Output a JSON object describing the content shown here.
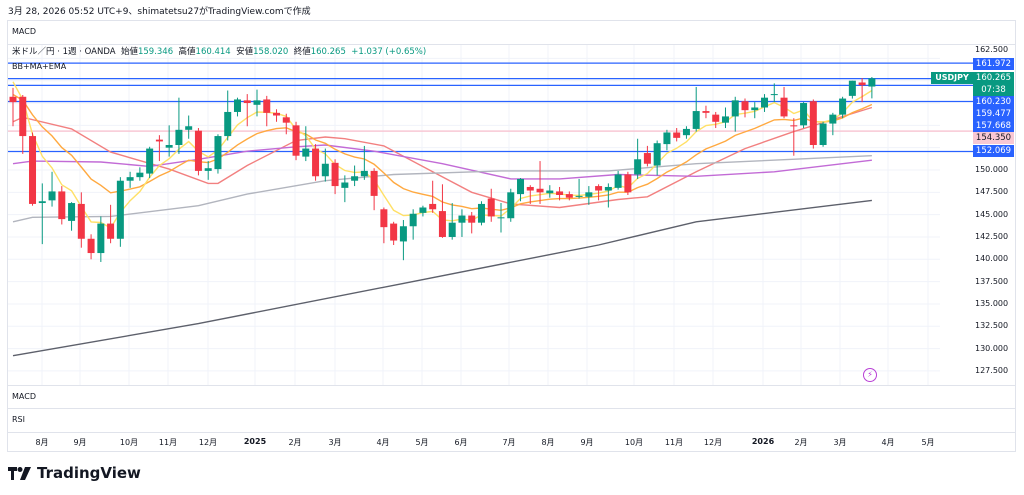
{
  "caption": "3月 28, 2026 05:52 UTC+9、shimatetsu27がTradingView.comで作成",
  "panes": {
    "top": "MACD",
    "macd": "MACD",
    "rsi": "RSI",
    "indicators": "BB+MA+EMA"
  },
  "legend": {
    "symbol": "米ドル／円 · 1週 · OANDA",
    "open_label": "始値",
    "open": "159.346",
    "high_label": "高値",
    "high": "160.414",
    "low_label": "安値",
    "low": "158.020",
    "close_label": "終値",
    "close": "160.265",
    "change": "+1.037 (+0.65%)"
  },
  "symbol_tag": "USDJPY",
  "current_price": {
    "price": "160.265",
    "countdown": "07:38"
  },
  "price_labels": [
    {
      "text": "161.972",
      "value": 161.972,
      "color": "#2962ff"
    },
    {
      "text": "160.230",
      "value": 160.23,
      "color": "#2962ff"
    },
    {
      "text": "159.477",
      "value": 159.477,
      "color": "#2962ff"
    },
    {
      "text": "157.668",
      "value": 157.668,
      "color": "#2962ff"
    },
    {
      "text": "154.350",
      "value": 154.35,
      "color": "#f8c8d4"
    },
    {
      "text": "152.069",
      "value": 152.069,
      "color": "#2962ff"
    }
  ],
  "price_ticks": [
    "162.500",
    "150.000",
    "147.500",
    "145.000",
    "142.500",
    "140.000",
    "137.500",
    "135.000",
    "132.500",
    "130.000",
    "127.500"
  ],
  "time_labels": [
    {
      "text": "8月"
    },
    {
      "text": "9月"
    },
    {
      "text": "10月"
    },
    {
      "text": "11月"
    },
    {
      "text": "12月"
    },
    {
      "text": "2025",
      "bold": true
    },
    {
      "text": "2月"
    },
    {
      "text": "3月"
    },
    {
      "text": "4月"
    },
    {
      "text": "5月"
    },
    {
      "text": "6月"
    },
    {
      "text": "7月"
    },
    {
      "text": "8月"
    },
    {
      "text": "9月"
    },
    {
      "text": "10月"
    },
    {
      "text": "11月"
    },
    {
      "text": "12月"
    },
    {
      "text": "2026",
      "bold": true
    },
    {
      "text": "2月"
    },
    {
      "text": "3月"
    },
    {
      "text": "4月"
    },
    {
      "text": "5月"
    }
  ],
  "brand": "TradingView",
  "colors": {
    "up": "#089981",
    "down": "#f23645",
    "level": "#2962ff",
    "pink_level": "#f8c8d4",
    "tag": "#089981"
  },
  "chart_data": {
    "type": "candlestick",
    "interval": "1W",
    "ylim": [
      126,
      163
    ],
    "ohlc": [
      [
        158.2,
        159.2,
        154.9,
        157.6
      ],
      [
        158.2,
        158.4,
        151.8,
        153.8
      ],
      [
        153.8,
        154.2,
        146.0,
        146.2
      ],
      [
        146.3,
        148.5,
        141.7,
        146.5
      ],
      [
        146.6,
        149.8,
        145.9,
        147.6
      ],
      [
        147.6,
        148.2,
        143.9,
        144.5
      ],
      [
        144.3,
        146.4,
        143.2,
        146.3
      ],
      [
        146.2,
        147.5,
        141.3,
        142.3
      ],
      [
        142.3,
        142.8,
        140.0,
        140.7
      ],
      [
        140.7,
        144.8,
        139.7,
        144.0
      ],
      [
        144.0,
        146.1,
        141.8,
        142.3
      ],
      [
        142.3,
        149.2,
        141.4,
        148.8
      ],
      [
        148.8,
        149.8,
        148.0,
        149.2
      ],
      [
        149.2,
        150.3,
        148.8,
        149.7
      ],
      [
        149.6,
        152.6,
        149.1,
        152.4
      ],
      [
        153.4,
        153.9,
        151.0,
        153.2
      ],
      [
        152.5,
        155.0,
        151.5,
        152.8
      ],
      [
        152.8,
        158.1,
        151.8,
        154.5
      ],
      [
        154.5,
        156.1,
        153.5,
        154.9
      ],
      [
        154.4,
        154.7,
        149.4,
        149.9
      ],
      [
        149.9,
        151.0,
        148.9,
        150.2
      ],
      [
        150.1,
        154.0,
        149.6,
        153.8
      ],
      [
        153.8,
        158.9,
        153.3,
        156.5
      ],
      [
        156.5,
        158.1,
        156.0,
        157.9
      ],
      [
        157.8,
        158.5,
        154.9,
        157.5
      ],
      [
        157.3,
        159.0,
        156.0,
        157.8
      ],
      [
        157.9,
        158.3,
        154.9,
        156.4
      ],
      [
        156.4,
        156.8,
        155.4,
        156.1
      ],
      [
        155.9,
        156.3,
        154.0,
        155.3
      ],
      [
        155.0,
        155.4,
        151.1,
        151.6
      ],
      [
        151.5,
        154.9,
        151.0,
        152.4
      ],
      [
        152.4,
        152.9,
        148.8,
        149.3
      ],
      [
        149.3,
        152.4,
        148.7,
        150.7
      ],
      [
        150.8,
        151.2,
        147.3,
        148.2
      ],
      [
        148.0,
        149.4,
        146.4,
        148.6
      ],
      [
        148.8,
        150.5,
        148.2,
        149.3
      ],
      [
        149.3,
        152.7,
        148.9,
        149.9
      ],
      [
        149.9,
        150.2,
        145.5,
        147.1
      ],
      [
        145.6,
        145.8,
        141.8,
        143.6
      ],
      [
        144.0,
        144.2,
        141.6,
        142.1
      ],
      [
        142.0,
        144.4,
        139.9,
        143.7
      ],
      [
        143.7,
        145.6,
        142.2,
        145.1
      ],
      [
        145.2,
        146.0,
        144.8,
        145.8
      ],
      [
        146.2,
        148.8,
        145.2,
        145.6
      ],
      [
        145.4,
        148.4,
        142.4,
        142.5
      ],
      [
        142.5,
        146.3,
        142.2,
        144.1
      ],
      [
        144.1,
        145.6,
        142.5,
        144.9
      ],
      [
        144.9,
        145.3,
        142.9,
        144.1
      ],
      [
        144.1,
        146.5,
        143.8,
        146.2
      ],
      [
        146.8,
        147.9,
        144.2,
        144.8
      ],
      [
        144.6,
        146.3,
        143.0,
        144.7
      ],
      [
        144.6,
        147.9,
        144.2,
        147.5
      ],
      [
        147.3,
        149.1,
        146.5,
        149.0
      ],
      [
        148.1,
        148.3,
        146.2,
        147.7
      ],
      [
        147.9,
        151.0,
        146.2,
        147.5
      ],
      [
        147.4,
        148.3,
        146.9,
        147.7
      ],
      [
        147.6,
        148.1,
        146.6,
        147.2
      ],
      [
        147.3,
        147.6,
        146.6,
        146.9
      ],
      [
        147.0,
        149.0,
        146.8,
        147.1
      ],
      [
        147.0,
        148.2,
        146.1,
        147.5
      ],
      [
        148.2,
        148.4,
        146.6,
        147.7
      ],
      [
        147.7,
        148.5,
        145.8,
        148.1
      ],
      [
        148.0,
        149.9,
        147.8,
        149.5
      ],
      [
        149.5,
        149.8,
        147.2,
        147.5
      ],
      [
        149.5,
        153.5,
        149.0,
        151.2
      ],
      [
        151.9,
        152.7,
        150.4,
        150.7
      ],
      [
        150.5,
        153.3,
        149.4,
        153.0
      ],
      [
        152.9,
        154.5,
        152.2,
        154.2
      ],
      [
        154.2,
        154.7,
        153.2,
        153.6
      ],
      [
        153.9,
        154.9,
        153.5,
        154.6
      ],
      [
        154.6,
        159.3,
        154.3,
        156.6
      ],
      [
        156.6,
        157.2,
        155.8,
        156.4
      ],
      [
        156.2,
        156.5,
        154.7,
        155.4
      ],
      [
        155.3,
        157.0,
        154.7,
        156.0
      ],
      [
        156.0,
        158.2,
        154.3,
        157.8
      ],
      [
        157.7,
        158.0,
        155.9,
        156.7
      ],
      [
        156.7,
        157.6,
        155.8,
        157.0
      ],
      [
        157.0,
        158.5,
        156.5,
        158.1
      ],
      [
        158.4,
        159.7,
        157.6,
        158.5
      ],
      [
        158.1,
        159.3,
        155.8,
        156.0
      ],
      [
        155.0,
        155.8,
        151.6,
        154.9
      ],
      [
        155.0,
        157.6,
        154.7,
        157.5
      ],
      [
        157.7,
        157.9,
        152.4,
        152.8
      ],
      [
        152.8,
        155.4,
        152.6,
        155.2
      ],
      [
        155.2,
        156.4,
        153.9,
        156.2
      ],
      [
        156.2,
        158.2,
        155.8,
        158.0
      ],
      [
        158.3,
        160.0,
        158.0,
        160.0
      ],
      [
        159.8,
        160.3,
        157.6,
        159.5
      ],
      [
        159.346,
        160.414,
        158.02,
        160.265
      ]
    ],
    "ema_fast": {
      "color": "#ffe066",
      "alpha": 0.33,
      "seed": 161.0
    },
    "ema_slow": {
      "color": "#ffa940",
      "alpha": 0.14,
      "seed": 158.6
    },
    "lines": [
      {
        "name": "ma-red",
        "color": "#f28080",
        "points": [
          [
            0,
            155.4
          ],
          [
            1,
            155.9
          ],
          [
            6,
            154.6
          ],
          [
            10,
            152
          ],
          [
            16,
            150.1
          ],
          [
            20,
            148.5
          ],
          [
            21,
            148.5
          ],
          [
            24,
            150.5
          ],
          [
            29,
            153.3
          ],
          [
            32,
            153.7
          ],
          [
            34,
            153.5
          ],
          [
            38,
            152.7
          ],
          [
            43,
            149.8
          ],
          [
            47,
            147.5
          ],
          [
            51,
            146.2
          ],
          [
            56,
            145.8
          ],
          [
            62,
            146.7
          ],
          [
            65,
            147
          ],
          [
            70,
            149.8
          ],
          [
            75,
            152.4
          ],
          [
            80,
            154.3
          ],
          [
            88,
            157.0
          ]
        ]
      },
      {
        "name": "ma-purple",
        "color": "#c26bd6",
        "points": [
          [
            0,
            150.7
          ],
          [
            2,
            151
          ],
          [
            9,
            150.9
          ],
          [
            14,
            150.4
          ],
          [
            19,
            151.2
          ],
          [
            24,
            152.1
          ],
          [
            29,
            152.6
          ],
          [
            32,
            152.8
          ],
          [
            37,
            152.1
          ],
          [
            44,
            150.7
          ],
          [
            51,
            149
          ],
          [
            56,
            149
          ],
          [
            62,
            149.5
          ],
          [
            70,
            149.3
          ],
          [
            78,
            149.8
          ],
          [
            88,
            151.1
          ]
        ]
      },
      {
        "name": "ma-gray",
        "color": "#b2b5be",
        "points": [
          [
            0,
            144.2
          ],
          [
            2,
            144.7
          ],
          [
            10,
            144.8
          ],
          [
            19,
            146
          ],
          [
            24,
            147.3
          ],
          [
            32,
            148.8
          ],
          [
            39,
            149.5
          ],
          [
            50,
            149.9
          ],
          [
            61,
            149.9
          ],
          [
            70,
            150.7
          ],
          [
            88,
            151.6
          ]
        ]
      },
      {
        "name": "ma-dark",
        "color": "#5d606b",
        "points": [
          [
            0,
            129.2
          ],
          [
            19,
            132.8
          ],
          [
            40,
            137.3
          ],
          [
            60,
            141.6
          ],
          [
            70,
            144.2
          ],
          [
            88,
            146.6
          ]
        ]
      }
    ]
  }
}
